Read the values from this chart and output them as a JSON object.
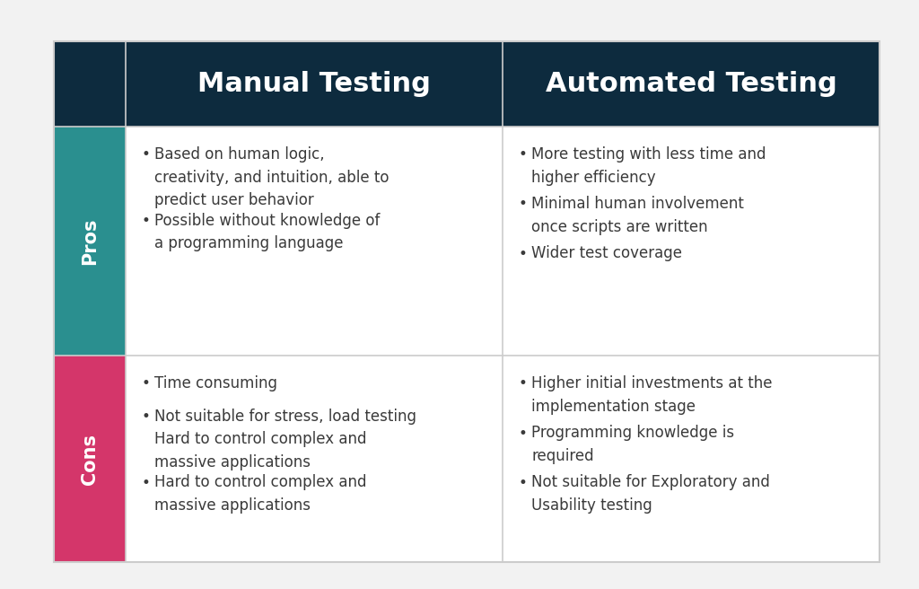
{
  "background_color": "#f2f2f2",
  "table_bg": "#ffffff",
  "header_bg": "#0d2b3e",
  "header_text_color": "#ffffff",
  "pros_label_bg": "#2a8f8f",
  "cons_label_bg": "#d4366a",
  "label_text_color": "#ffffff",
  "body_text_color": "#3a3a3a",
  "grid_color": "#cccccc",
  "col1_header": "Manual Testing",
  "col2_header": "Automated Testing",
  "row1_label": "Pros",
  "row2_label": "Cons",
  "manual_pros": [
    "Based on human logic,\ncreativity, and intuition, able to\npredict user behavior",
    "Possible without knowledge of\na programming language"
  ],
  "automated_pros": [
    "More testing with less time and\nhigher efficiency",
    "Minimal human involvement\nonce scripts are written",
    "Wider test coverage"
  ],
  "manual_cons": [
    "Time consuming",
    "Not suitable for stress, load testing\nHard to control complex and\nmassive applications",
    "Hard to control complex and\nmassive applications"
  ],
  "automated_cons": [
    "Higher initial investments at the\nimplementation stage",
    "Programming knowledge is\nrequired",
    "Not suitable for Exploratory and\nUsability testing"
  ],
  "header_fontsize": 22,
  "label_fontsize": 15,
  "body_fontsize": 12,
  "bullet": "•"
}
